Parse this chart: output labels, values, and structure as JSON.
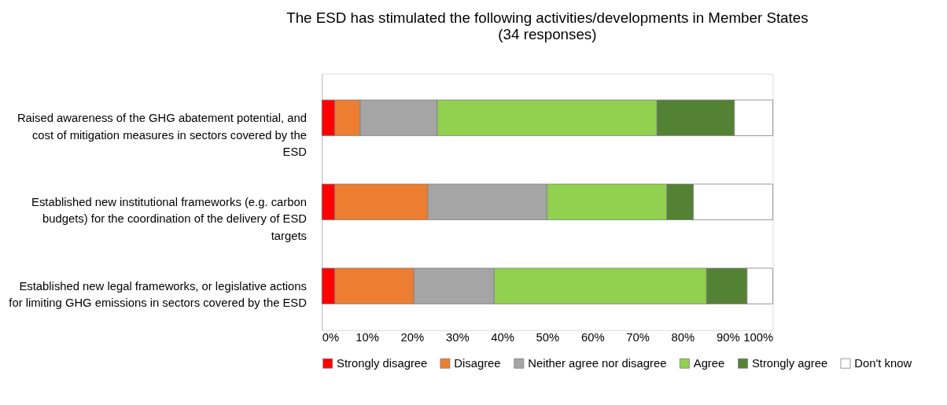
{
  "chart_data": {
    "type": "bar",
    "orientation": "horizontal",
    "stacked": true,
    "title": "The ESD has stimulated the following activities/developments in Member States (34 responses)",
    "categories": [
      "Raised awareness of the GHG abatement potential, and cost of mitigation measures in sectors covered by the ESD",
      "Established new institutional frameworks (e.g. carbon budgets) for the coordination of the delivery of ESD targets",
      "Established new legal frameworks, or legislative actions for limiting GHG emissions in sectors covered by the ESD"
    ],
    "series": [
      {
        "name": "Strongly disagree",
        "color": "#ff0000",
        "values": [
          2.9,
          2.9,
          2.9
        ]
      },
      {
        "name": "Disagree",
        "color": "#ed7d31",
        "values": [
          5.6,
          20.6,
          17.5
        ]
      },
      {
        "name": "Neither agree nor disagree",
        "color": "#a5a5a5",
        "values": [
          17.1,
          26.4,
          17.8
        ]
      },
      {
        "name": "Agree",
        "color": "#92d050",
        "values": [
          48.7,
          26.6,
          47.1
        ]
      },
      {
        "name": "Strongly agree",
        "color": "#548235",
        "values": [
          17.2,
          5.9,
          9.0
        ]
      },
      {
        "name": "Don't know",
        "color": "#ffffff",
        "values": [
          8.5,
          17.6,
          5.7
        ]
      }
    ],
    "xlim": [
      0,
      100
    ],
    "xticks": [
      {
        "value": 0,
        "label": "0%"
      },
      {
        "value": 10,
        "label": "10%"
      },
      {
        "value": 20,
        "label": "20%"
      },
      {
        "value": 30,
        "label": "30%"
      },
      {
        "value": 40,
        "label": "40%"
      },
      {
        "value": 50,
        "label": "50%"
      },
      {
        "value": 60,
        "label": "60%"
      },
      {
        "value": 70,
        "label": "70%"
      },
      {
        "value": 80,
        "label": "80%"
      },
      {
        "value": 90,
        "label": "90%"
      },
      {
        "value": 100,
        "label": "100%"
      }
    ],
    "grid": false,
    "legend": "bottom"
  }
}
